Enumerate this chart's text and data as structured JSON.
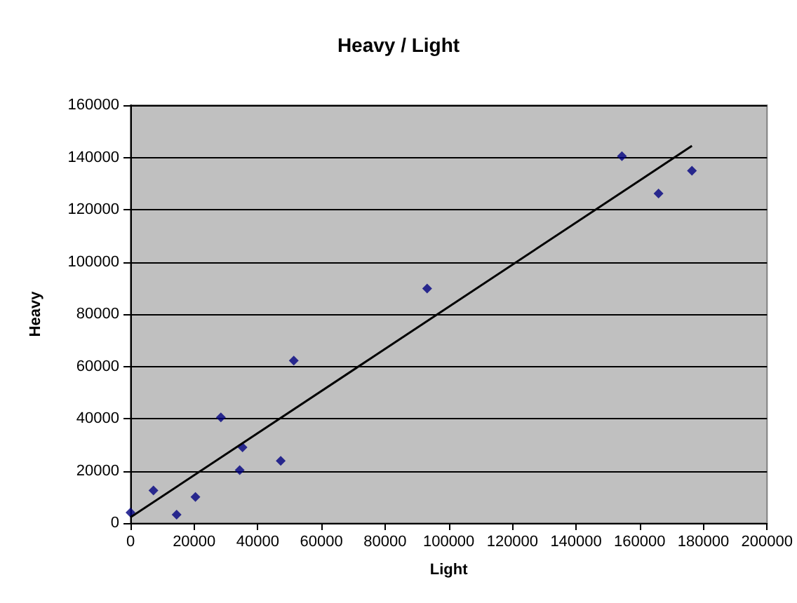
{
  "chart_data": {
    "type": "scatter",
    "title": "Heavy / Light",
    "xlabel": "Light",
    "ylabel": "Heavy",
    "xlim": [
      0,
      200000
    ],
    "xticks": [
      0,
      20000,
      40000,
      60000,
      80000,
      100000,
      120000,
      140000,
      160000,
      180000,
      200000
    ],
    "ylim": [
      0,
      160000
    ],
    "yticks": [
      0,
      20000,
      40000,
      60000,
      80000,
      100000,
      120000,
      140000,
      160000
    ],
    "grid": "y",
    "marker": "diamond",
    "series": [
      {
        "color": "#000080",
        "x": [
          0,
          7200,
          14500,
          20400,
          28400,
          35200,
          34300,
          47200,
          51300,
          93200,
          154400,
          165900,
          176400
        ],
        "values": [
          4000,
          12500,
          3200,
          10000,
          40500,
          29000,
          20300,
          23800,
          62200,
          89800,
          140500,
          126200,
          134900
        ]
      },
      {
        "type": "line",
        "color": "#000000",
        "marker": "none",
        "x": [
          0,
          176400
        ],
        "values": [
          2200,
          144400
        ]
      }
    ]
  }
}
